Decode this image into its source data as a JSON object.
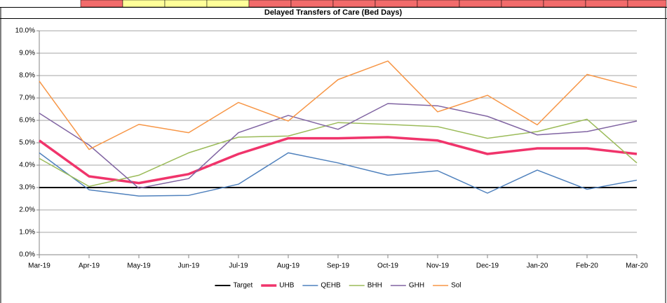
{
  "chart_data": {
    "type": "line",
    "title": "Delayed Transfers of Care (Bed Days)",
    "categories": [
      "Mar-19",
      "Apr-19",
      "May-19",
      "Jun-19",
      "Jul-19",
      "Aug-19",
      "Sep-19",
      "Oct-19",
      "Nov-19",
      "Dec-19",
      "Jan-20",
      "Feb-20",
      "Mar-20"
    ],
    "series": [
      {
        "name": "Target",
        "color": "#000000",
        "line_width": 2,
        "values": [
          3,
          3,
          3,
          3,
          3,
          3,
          3,
          3,
          3,
          3,
          3,
          3,
          3
        ]
      },
      {
        "name": "UHB",
        "color": "#f0346b",
        "line_width": 3.5,
        "values": [
          5.1,
          3.5,
          3.2,
          3.6,
          4.5,
          5.2,
          5.2,
          5.25,
          5.1,
          4.5,
          4.75,
          4.75,
          4.5
        ]
      },
      {
        "name": "QEHB",
        "color": "#4f81bd",
        "line_width": 1.5,
        "values": [
          4.55,
          2.9,
          2.62,
          2.65,
          3.15,
          4.55,
          4.1,
          3.55,
          3.75,
          2.75,
          3.78,
          2.92,
          3.33
        ]
      },
      {
        "name": "BHH",
        "color": "#9bbb59",
        "line_width": 1.5,
        "values": [
          4.3,
          3.05,
          3.55,
          4.55,
          5.25,
          5.3,
          5.9,
          5.82,
          5.72,
          5.2,
          5.5,
          6.05,
          4.1
        ]
      },
      {
        "name": "GHH",
        "color": "#8064a2",
        "line_width": 1.5,
        "values": [
          6.32,
          4.9,
          2.97,
          3.4,
          5.45,
          6.22,
          5.6,
          6.75,
          6.65,
          6.18,
          5.35,
          5.5,
          5.97
        ]
      },
      {
        "name": "Sol",
        "color": "#f79646",
        "line_width": 1.5,
        "values": [
          7.75,
          4.7,
          5.82,
          5.45,
          6.8,
          5.97,
          7.82,
          8.65,
          6.38,
          7.12,
          5.8,
          8.05,
          7.47
        ]
      }
    ],
    "ylim": [
      0,
      10
    ],
    "yticks": [
      {
        "value": 0,
        "label": "0.0%"
      },
      {
        "value": 1,
        "label": "1.0%"
      },
      {
        "value": 2,
        "label": "2.0%"
      },
      {
        "value": 3,
        "label": "3.0%"
      },
      {
        "value": 4,
        "label": "4.0%"
      },
      {
        "value": 5,
        "label": "5.0%"
      },
      {
        "value": 6,
        "label": "6.0%"
      },
      {
        "value": 7,
        "label": "7.0%"
      },
      {
        "value": 8,
        "label": "8.0%"
      },
      {
        "value": 9,
        "label": "9.0%"
      },
      {
        "value": 10,
        "label": "10.0%"
      }
    ],
    "grid": true,
    "legend": "bottom"
  }
}
